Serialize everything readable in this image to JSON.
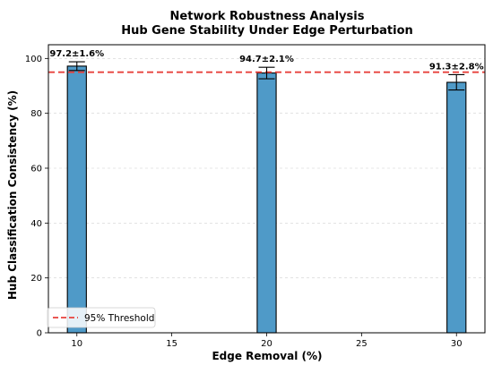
{
  "chart_data": {
    "type": "bar",
    "title": [
      "Network Robustness Analysis",
      "Hub Gene Stability Under Edge Perturbation"
    ],
    "xlabel": "Edge Removal (%)",
    "ylabel": "Hub Classification Consistency (%)",
    "x": [
      10,
      20,
      30
    ],
    "values": [
      97.2,
      94.7,
      91.3
    ],
    "errors": [
      1.6,
      2.1,
      2.8
    ],
    "data_labels": [
      "97.2±1.6%",
      "94.7±2.1%",
      "91.3±2.8%"
    ],
    "bar_width": 1,
    "xlim": [
      8.5,
      31.5
    ],
    "ylim": [
      0,
      105
    ],
    "xticks": [
      10,
      15,
      20,
      25,
      30
    ],
    "yticks": [
      0,
      20,
      40,
      60,
      80,
      100
    ],
    "bar_color": "#4f9ac8",
    "threshold": {
      "value": 95,
      "label": "95% Threshold",
      "color": "#e8413c"
    },
    "grid": true,
    "legend_position": "lower-left"
  }
}
